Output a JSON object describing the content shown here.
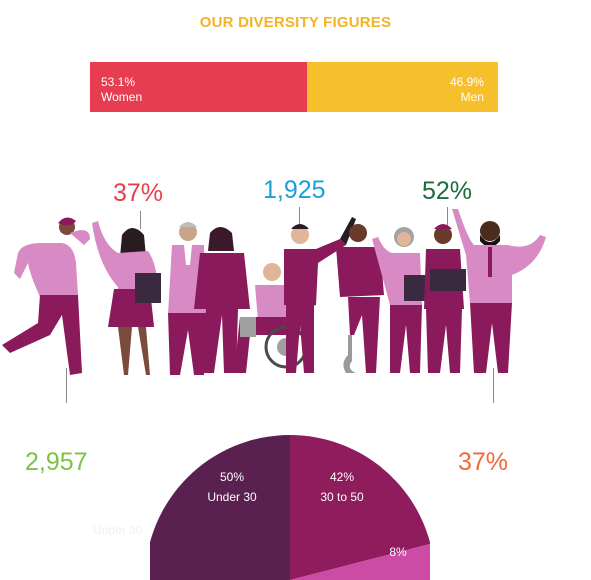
{
  "page": {
    "title": "OUR DIVERSITY FIGURES"
  },
  "colors": {
    "women": "#e73d50",
    "men": "#f6c02d",
    "title": "#f4b324",
    "stat_red": "#e63f4e",
    "stat_blue": "#1a9fd8",
    "stat_green": "#1a6e3b",
    "stat_lime": "#7dc243",
    "stat_orange": "#f1693a",
    "pie_dark": "#5a2050",
    "pie_mid": "#8f1c5c",
    "pie_pink": "#cc4ca5",
    "figure_magenta": "#8b1a5c",
    "figure_pink": "#d88ac4"
  },
  "gender_bar": {
    "women": {
      "value": 53.1,
      "percent": "53.1%",
      "label": "Women"
    },
    "men": {
      "value": 46.9,
      "percent": "46.9%",
      "label": "Men"
    }
  },
  "stats": {
    "top_left": "37%",
    "top_middle": "1,925",
    "top_right": "52%",
    "bottom_left": "2,957",
    "bottom_right": "37%"
  },
  "faint_label": "Under 30",
  "chart_data": [
    {
      "type": "bar",
      "orientation": "horizontal-stacked",
      "categories": [
        "Women",
        "Men"
      ],
      "values": [
        53.1,
        46.9
      ],
      "title": "OUR DIVERSITY FIGURES"
    },
    {
      "type": "pie",
      "shape": "semicircle (top half visible)",
      "slices": [
        {
          "label": "Under 30",
          "percent_label": "50%",
          "value": 50
        },
        {
          "label": "30 to 50",
          "percent_label": "42%",
          "value": 42
        },
        {
          "label": "",
          "percent_label": "8%",
          "value": 8
        }
      ]
    }
  ]
}
